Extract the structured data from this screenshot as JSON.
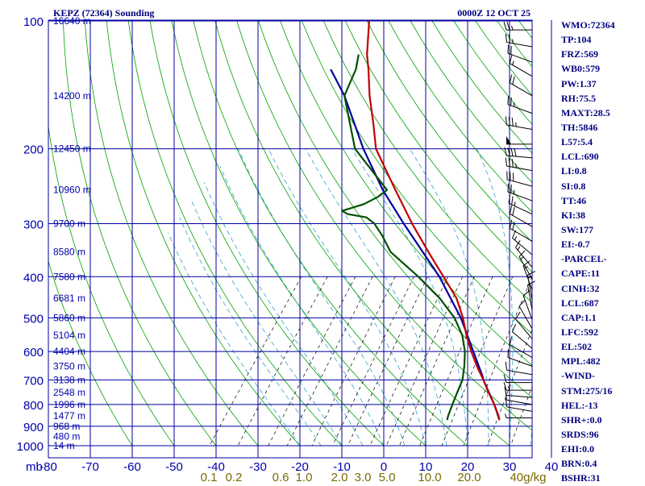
{
  "header": {
    "title": "KEPZ (72364) Sounding",
    "datetime": "0000Z 12 OCT 25"
  },
  "colors": {
    "grid": "#00009f",
    "axis_text": "#0000aa",
    "dry_adiabat": "#00a000",
    "mixing_ratio": "#000000",
    "moist_adiabat": "#33a0cc",
    "temperature": "#c00000",
    "dewpoint": "#005000",
    "parcel": "#0000a0",
    "stats_text": "#00007f"
  },
  "chart_data": {
    "type": "skew-t",
    "pressure_ticks": [
      "100",
      "200",
      "300",
      "400",
      "500",
      "600",
      "700",
      "800",
      "900",
      "1000"
    ],
    "pressure_levels": [
      100,
      200,
      300,
      400,
      500,
      600,
      700,
      800,
      900,
      1000
    ],
    "pressure_axis_unit": "mb",
    "temperature_ticks": [
      "-80",
      "-70",
      "-60",
      "-50",
      "-40",
      "-30",
      "-20",
      "-10",
      "0",
      "10",
      "20",
      "30",
      "40"
    ],
    "height_labels": [
      {
        "p": 100,
        "text": "16640 m"
      },
      {
        "p": 150,
        "text": "14200 m"
      },
      {
        "p": 200,
        "text": "12450 m"
      },
      {
        "p": 250,
        "text": "10960 m"
      },
      {
        "p": 300,
        "text": "9700 m"
      },
      {
        "p": 350,
        "text": "8580 m"
      },
      {
        "p": 400,
        "text": "7580 m"
      },
      {
        "p": 450,
        "text": "6681 m"
      },
      {
        "p": 500,
        "text": "5860 m"
      },
      {
        "p": 550,
        "text": "5104 m"
      },
      {
        "p": 600,
        "text": "4404 m"
      },
      {
        "p": 650,
        "text": "3750 m"
      },
      {
        "p": 700,
        "text": "3138 m"
      },
      {
        "p": 750,
        "text": "2548 m"
      },
      {
        "p": 800,
        "text": "1996 m"
      },
      {
        "p": 850,
        "text": "1477 m"
      },
      {
        "p": 900,
        "text": "968 m"
      },
      {
        "p": 950,
        "text": "480 m"
      },
      {
        "p": 1000,
        "text": "14 m"
      }
    ],
    "mixing_ratio_labels": [
      "0.1",
      "0.2",
      "0.6",
      "1.0",
      "2.0",
      "3.0",
      "5.0",
      "10.0",
      "20.0",
      "40g/kg"
    ],
    "temperature_profile": [
      {
        "p": 100,
        "t": -79.5
      },
      {
        "p": 120,
        "t": -74
      },
      {
        "p": 130,
        "t": -71
      },
      {
        "p": 150,
        "t": -66
      },
      {
        "p": 175,
        "t": -60
      },
      {
        "p": 200,
        "t": -55
      },
      {
        "p": 250,
        "t": -43
      },
      {
        "p": 300,
        "t": -33
      },
      {
        "p": 350,
        "t": -24
      },
      {
        "p": 400,
        "t": -16
      },
      {
        "p": 450,
        "t": -9
      },
      {
        "p": 500,
        "t": -4
      },
      {
        "p": 550,
        "t": 0
      },
      {
        "p": 600,
        "t": 4
      },
      {
        "p": 650,
        "t": 8
      },
      {
        "p": 700,
        "t": 12
      },
      {
        "p": 750,
        "t": 15.5
      },
      {
        "p": 800,
        "t": 19
      },
      {
        "p": 850,
        "t": 22
      },
      {
        "p": 870,
        "t": 23
      }
    ],
    "dewpoint_profile": [
      {
        "p": 120,
        "t": -76
      },
      {
        "p": 130,
        "t": -74
      },
      {
        "p": 150,
        "t": -72
      },
      {
        "p": 200,
        "t": -60
      },
      {
        "p": 250,
        "t": -45
      },
      {
        "p": 260,
        "t": -46
      },
      {
        "p": 270,
        "t": -48
      },
      {
        "p": 280,
        "t": -52
      },
      {
        "p": 285,
        "t": -50
      },
      {
        "p": 290,
        "t": -45
      },
      {
        "p": 300,
        "t": -42
      },
      {
        "p": 320,
        "t": -38
      },
      {
        "p": 350,
        "t": -33
      },
      {
        "p": 400,
        "t": -22
      },
      {
        "p": 450,
        "t": -13
      },
      {
        "p": 500,
        "t": -6
      },
      {
        "p": 550,
        "t": -1
      },
      {
        "p": 600,
        "t": 2.5
      },
      {
        "p": 650,
        "t": 5
      },
      {
        "p": 700,
        "t": 7
      },
      {
        "p": 750,
        "t": 8
      },
      {
        "p": 800,
        "t": 9
      },
      {
        "p": 850,
        "t": 10
      },
      {
        "p": 870,
        "t": 10.5
      }
    ],
    "parcel_profile": [
      {
        "p": 870,
        "t": 23
      },
      {
        "p": 800,
        "t": 19
      },
      {
        "p": 700,
        "t": 12
      },
      {
        "p": 690,
        "t": 11.4
      },
      {
        "p": 600,
        "t": 4.5
      },
      {
        "p": 500,
        "t": -4.5
      },
      {
        "p": 400,
        "t": -17
      },
      {
        "p": 300,
        "t": -35
      },
      {
        "p": 250,
        "t": -46
      },
      {
        "p": 200,
        "t": -58
      },
      {
        "p": 150,
        "t": -72
      },
      {
        "p": 130,
        "t": -80
      }
    ],
    "winds": [
      {
        "p": 105,
        "dir": 270,
        "spd": 25
      },
      {
        "p": 115,
        "dir": 280,
        "spd": 25
      },
      {
        "p": 125,
        "dir": 290,
        "spd": 20
      },
      {
        "p": 135,
        "dir": 300,
        "spd": 15
      },
      {
        "p": 150,
        "dir": 300,
        "spd": 20
      },
      {
        "p": 165,
        "dir": 290,
        "spd": 25
      },
      {
        "p": 180,
        "dir": 280,
        "spd": 35
      },
      {
        "p": 195,
        "dir": 270,
        "spd": 50
      },
      {
        "p": 210,
        "dir": 275,
        "spd": 40
      },
      {
        "p": 225,
        "dir": 280,
        "spd": 35
      },
      {
        "p": 245,
        "dir": 285,
        "spd": 30
      },
      {
        "p": 265,
        "dir": 290,
        "spd": 25
      },
      {
        "p": 285,
        "dir": 295,
        "spd": 25
      },
      {
        "p": 305,
        "dir": 300,
        "spd": 20
      },
      {
        "p": 330,
        "dir": 300,
        "spd": 20
      },
      {
        "p": 355,
        "dir": 310,
        "spd": 15
      },
      {
        "p": 380,
        "dir": 320,
        "spd": 15
      },
      {
        "p": 405,
        "dir": 330,
        "spd": 15
      },
      {
        "p": 430,
        "dir": 340,
        "spd": 15
      },
      {
        "p": 455,
        "dir": 350,
        "spd": 15
      },
      {
        "p": 480,
        "dir": 350,
        "spd": 10
      },
      {
        "p": 505,
        "dir": 340,
        "spd": 10
      },
      {
        "p": 530,
        "dir": 330,
        "spd": 10
      },
      {
        "p": 560,
        "dir": 320,
        "spd": 10
      },
      {
        "p": 590,
        "dir": 310,
        "spd": 10
      },
      {
        "p": 620,
        "dir": 300,
        "spd": 10
      },
      {
        "p": 650,
        "dir": 290,
        "spd": 10
      },
      {
        "p": 680,
        "dir": 280,
        "spd": 10
      },
      {
        "p": 710,
        "dir": 270,
        "spd": 10
      },
      {
        "p": 740,
        "dir": 270,
        "spd": 15
      },
      {
        "p": 770,
        "dir": 275,
        "spd": 10
      },
      {
        "p": 800,
        "dir": 280,
        "spd": 10
      },
      {
        "p": 830,
        "dir": 280,
        "spd": 10
      },
      {
        "p": 860,
        "dir": 270,
        "spd": 5
      }
    ]
  },
  "stats": [
    "WMO:72364",
    "TP:104",
    "FRZ:569",
    "WB0:579",
    "PW:1.37",
    "RH:75.5",
    "MAXT:28.5",
    "TH:5846",
    "L57:5.4",
    "LCL:690",
    "LI:0.8",
    "SI:0.8",
    "TT:46",
    "KI:38",
    "SW:177",
    "EI:-0.7",
    "-PARCEL-",
    "CAPE:11",
    "CINH:32",
    "LCL:687",
    "CAP:1.1",
    "LFC:592",
    "EL:502",
    "MPL:482",
    "-WIND-",
    "STM:275/16",
    "HEL:-13",
    "SHR+:0.0",
    "SRDS:96",
    "EHI:0.0",
    "BRN:0.4",
    "BSHR:31"
  ]
}
